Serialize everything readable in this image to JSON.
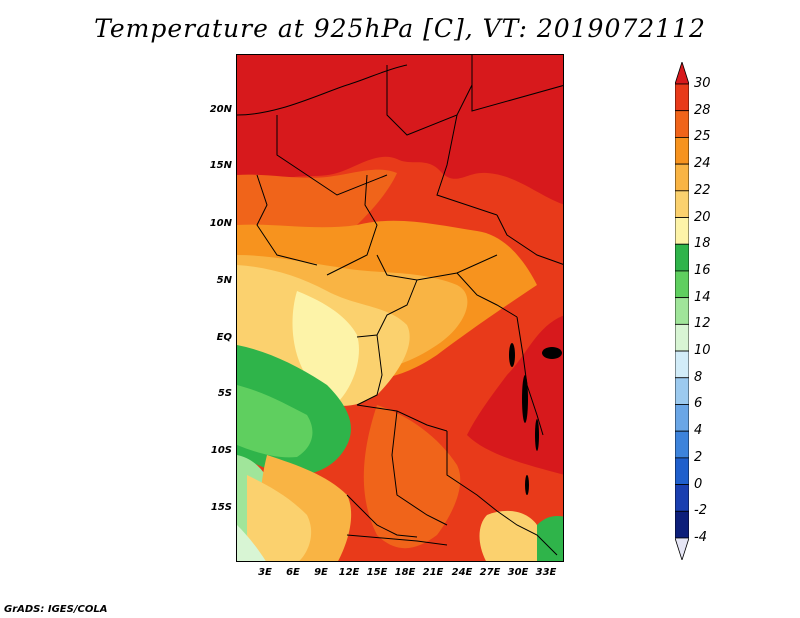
{
  "title": "Temperature at 925hPa [C], VT: 2019072112",
  "credit": "GrADS: IGES/COLA",
  "lat_ticks": [
    "20N",
    "15N",
    "10N",
    "5N",
    "EQ",
    "5S",
    "10S",
    "15S"
  ],
  "lon_ticks": [
    "3E",
    "6E",
    "9E",
    "12E",
    "15E",
    "18E",
    "21E",
    "24E",
    "27E",
    "30E",
    "33E"
  ],
  "colorbar": {
    "labels": [
      "30",
      "28",
      "25",
      "24",
      "22",
      "20",
      "18",
      "16",
      "14",
      "12",
      "10",
      "8",
      "6",
      "4",
      "2",
      "0",
      "-2",
      "-4"
    ],
    "colors": [
      "#d7191c",
      "#e83a1a",
      "#f0641a",
      "#f7931e",
      "#f9b444",
      "#fbd16e",
      "#fdf3a8",
      "#2fb44a",
      "#5fcf5f",
      "#a0e59a",
      "#d8f5d4",
      "#d2ecf8",
      "#9ccaef",
      "#6aa6e6",
      "#3d83db",
      "#1f5fcc",
      "#1a3fb0",
      "#0d1f7a"
    ]
  }
}
